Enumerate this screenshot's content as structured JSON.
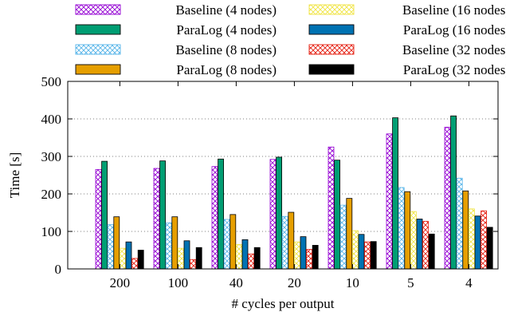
{
  "chart_data": {
    "type": "bar",
    "xlabel": "# cycles per output",
    "ylabel": "Time [s]",
    "ylim": [
      0,
      500
    ],
    "yticks": [
      0,
      100,
      200,
      300,
      400,
      500
    ],
    "grid": true,
    "legend_position": "top",
    "categories": [
      "200",
      "100",
      "40",
      "20",
      "10",
      "5",
      "4"
    ],
    "series": [
      {
        "name": "Baseline (4 nodes)",
        "style": "hatch",
        "color": "#9400d3",
        "values": [
          265,
          268,
          273,
          292,
          325,
          360,
          378
        ]
      },
      {
        "name": "ParaLog (4 nodes)",
        "style": "solid",
        "color": "#009e73",
        "values": [
          287,
          288,
          293,
          298,
          290,
          403,
          408
        ]
      },
      {
        "name": "Baseline (8 nodes)",
        "style": "hatch",
        "color": "#56b4e9",
        "values": [
          118,
          123,
          132,
          140,
          170,
          217,
          242
        ]
      },
      {
        "name": "ParaLog (8 nodes)",
        "style": "solid",
        "color": "#e69f00",
        "values": [
          139,
          139,
          145,
          151,
          188,
          206,
          208
        ]
      },
      {
        "name": "Baseline (16 nodes)",
        "style": "hatch",
        "color": "#f0e442",
        "values": [
          55,
          55,
          65,
          72,
          102,
          153,
          160
        ]
      },
      {
        "name": "ParaLog (16 nodes)",
        "style": "solid",
        "color": "#0072b2",
        "values": [
          72,
          75,
          78,
          86,
          92,
          133,
          141
        ]
      },
      {
        "name": "Baseline (32 nodes)",
        "style": "hatch",
        "color": "#e51e10",
        "values": [
          28,
          25,
          40,
          52,
          72,
          127,
          155
        ]
      },
      {
        "name": "ParaLog (32 nodes)",
        "style": "solid",
        "color": "#000000",
        "values": [
          50,
          57,
          57,
          63,
          73,
          93,
          111
        ]
      }
    ]
  }
}
